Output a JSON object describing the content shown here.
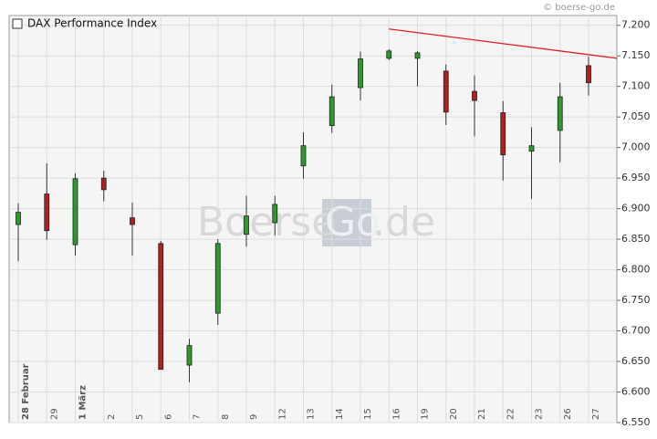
{
  "chart_data": {
    "type": "candlestick",
    "title": "DAX Performance Index",
    "source": "© boerse-go.de",
    "watermark": [
      "Boerse",
      "Go",
      ".de"
    ],
    "categories": [
      "28 Februar",
      "29",
      "1 März",
      "2",
      "5",
      "6",
      "7",
      "8",
      "9",
      "12",
      "13",
      "14",
      "15",
      "16",
      "19",
      "20",
      "21",
      "22",
      "23",
      "26",
      "27"
    ],
    "open": [
      6874,
      6924,
      6841,
      6950,
      6885,
      6843,
      6644,
      6729,
      6858,
      6877,
      6970,
      7036,
      7098,
      7146,
      7146,
      7125,
      7092,
      7057,
      6994,
      7028,
      7134
    ],
    "high": [
      6909,
      6974,
      6958,
      6962,
      6910,
      6847,
      6687,
      6850,
      6921,
      6921,
      7025,
      7103,
      7157,
      7161,
      7158,
      7136,
      7118,
      7076,
      7033,
      7106,
      7149
    ],
    "low": [
      6814,
      6849,
      6823,
      6912,
      6823,
      6637,
      6616,
      6710,
      6838,
      6856,
      6949,
      7024,
      7077,
      7143,
      7100,
      7037,
      7018,
      6946,
      6916,
      6976,
      7085
    ],
    "close": [
      6894,
      6864,
      6949,
      6931,
      6874,
      6637,
      6676,
      6843,
      6888,
      6907,
      7003,
      7083,
      7145,
      7158,
      7155,
      7058,
      7077,
      6988,
      7003,
      7083,
      7106
    ],
    "up_color": "#2e9a2e",
    "down_color": "#b02020",
    "trendline": {
      "from_index": 13,
      "from_value": 7194,
      "to_index": 21,
      "to_value": 7146,
      "color": "#e02020"
    },
    "ylim": [
      6550,
      7216
    ],
    "yticks": [
      {
        "value": 6550,
        "label": "6.550"
      },
      {
        "value": 6600,
        "label": "6.600"
      },
      {
        "value": 6650,
        "label": "6.650"
      },
      {
        "value": 6700,
        "label": "6.700"
      },
      {
        "value": 6750,
        "label": "6.750"
      },
      {
        "value": 6800,
        "label": "6.800"
      },
      {
        "value": 6850,
        "label": "6.850"
      },
      {
        "value": 6900,
        "label": "6.900"
      },
      {
        "value": 6950,
        "label": "6.950"
      },
      {
        "value": 7000,
        "label": "7.000"
      },
      {
        "value": 7050,
        "label": "7.050"
      },
      {
        "value": 7100,
        "label": "7.100"
      },
      {
        "value": 7150,
        "label": "7.150"
      },
      {
        "value": 7200,
        "label": "7.200"
      }
    ],
    "grid": true
  }
}
